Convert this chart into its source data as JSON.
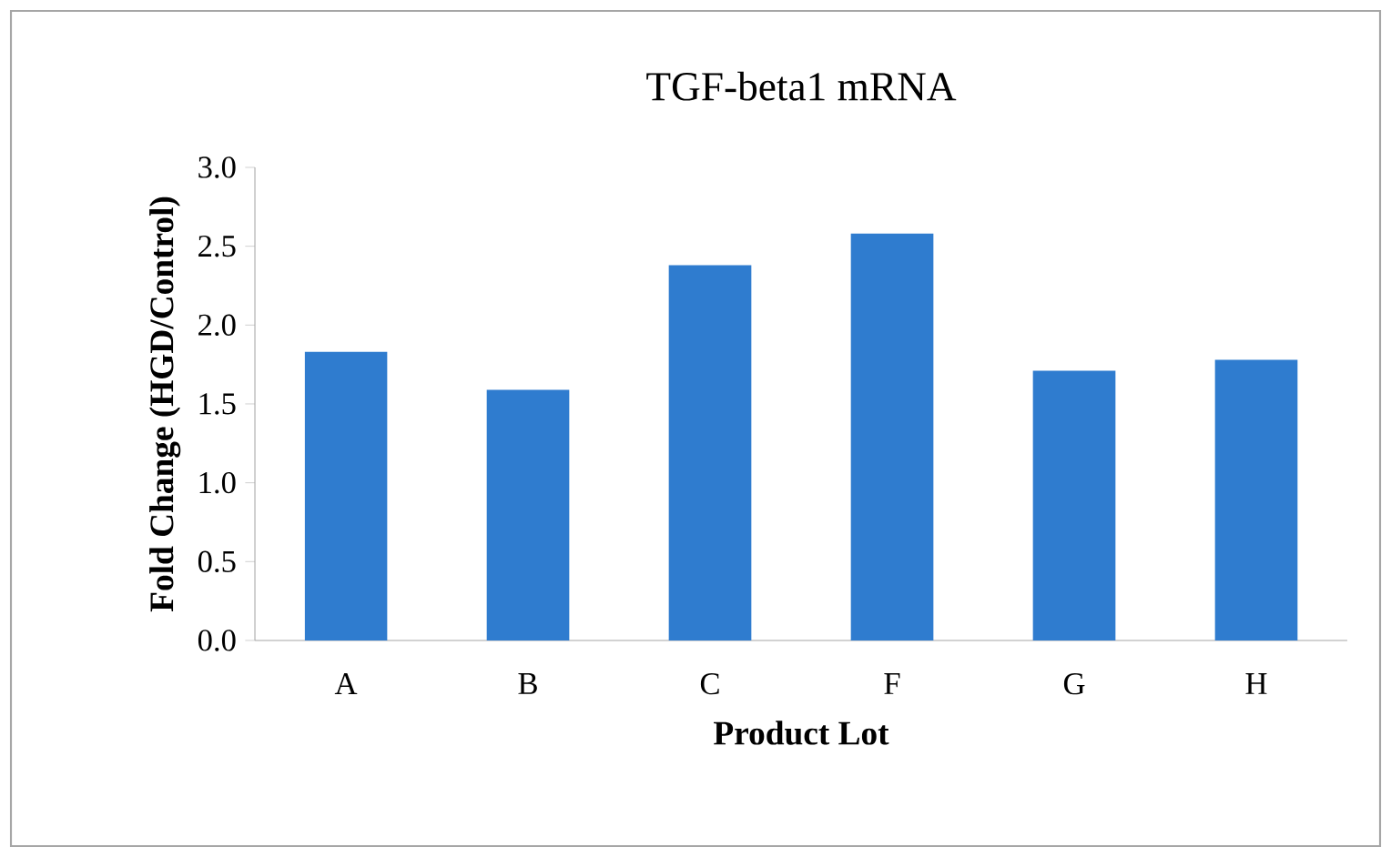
{
  "chart_data": {
    "type": "bar",
    "title": "TGF-beta1 mRNA",
    "xlabel": "Product Lot",
    "ylabel": "Fold Change (HGD/Control)",
    "categories": [
      "A",
      "B",
      "C",
      "F",
      "G",
      "H"
    ],
    "values": [
      1.83,
      1.59,
      2.38,
      2.58,
      1.71,
      1.78
    ],
    "color": "#2f7ccf",
    "ylim": [
      0,
      3
    ],
    "yticks": [
      {
        "value": 0,
        "label": "0.0"
      },
      {
        "value": 0.5,
        "label": "0.5"
      },
      {
        "value": 1,
        "label": "1.0"
      },
      {
        "value": 1.5,
        "label": "1.5"
      },
      {
        "value": 2,
        "label": "2.0"
      },
      {
        "value": 2.5,
        "label": "2.5"
      },
      {
        "value": 3,
        "label": "3.0"
      }
    ],
    "grid": false
  }
}
